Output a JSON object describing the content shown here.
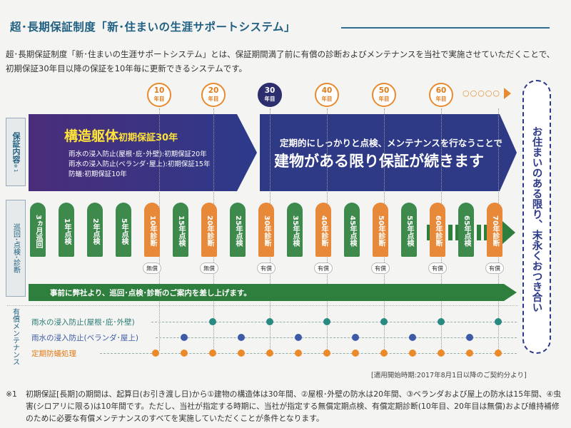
{
  "title": "超･長期保証制度「新･住まいの生涯サポートシステム」",
  "intro": "超･長期保証制度「新･住まいの生涯サポートシステム」とは、保証期間満了前に有償の診断およびメンテナンスを当社で実施させていただくことで、初期保証30年目以降の保証を10年毎に更新できるシステムです。",
  "year_badges": [
    {
      "num": "10",
      "unit": "年目"
    },
    {
      "num": "20",
      "unit": "年目"
    },
    {
      "num": "30",
      "unit": "年目"
    },
    {
      "num": "40",
      "unit": "年目"
    },
    {
      "num": "50",
      "unit": "年目"
    },
    {
      "num": "60",
      "unit": "年目"
    }
  ],
  "badge_dots": "○○○○○",
  "left_tabs": {
    "guarantee": "保証内容",
    "guarantee_note": "※1",
    "inspection": "巡回･点検･診断",
    "maintenance": "有償メンテナンス"
  },
  "structure": {
    "title": "構造躯体",
    "title_suffix": "初期保証30年",
    "lines": [
      "雨水の浸入防止(屋根･庇･外壁):初期保証20年",
      "雨水の浸入防止(ベランダ･屋上):初期保証15年",
      "防蟻:初期保証10年"
    ]
  },
  "continuation": {
    "sub": "定期的にしっかりと点検、メンテナンスを行なうことで",
    "main": "建物がある限り保証が続きます"
  },
  "inspections": [
    {
      "label": "3ヵ月巡回",
      "color": "green",
      "tag": ""
    },
    {
      "label": "1年点検",
      "color": "green",
      "tag": ""
    },
    {
      "label": "2年点検",
      "color": "green",
      "tag": ""
    },
    {
      "label": "5年点検",
      "color": "green",
      "tag": ""
    },
    {
      "label": "10年診断",
      "color": "orange",
      "tag": "無償"
    },
    {
      "label": "15年点検",
      "color": "green",
      "tag": ""
    },
    {
      "label": "20年診断",
      "color": "orange",
      "tag": "無償"
    },
    {
      "label": "25年点検",
      "color": "green",
      "tag": ""
    },
    {
      "label": "30年診断",
      "color": "orange",
      "tag": "有償"
    },
    {
      "label": "35年点検",
      "color": "green",
      "tag": ""
    },
    {
      "label": "40年診断",
      "color": "orange",
      "tag": "有償"
    },
    {
      "label": "45年点検",
      "color": "green",
      "tag": ""
    },
    {
      "label": "50年診断",
      "color": "orange",
      "tag": "有償"
    },
    {
      "label": "55年点検",
      "color": "green",
      "tag": ""
    },
    {
      "label": "60年診断",
      "color": "orange",
      "tag": "有償"
    },
    {
      "label": "65年点検",
      "color": "green",
      "tag": ""
    },
    {
      "label": "70年診断",
      "color": "orange",
      "tag": "有償"
    }
  ],
  "notice": "事前に弊社より、巡回･点検･診断のご案内を差し上げます。",
  "maintenance_rows": [
    {
      "label": "雨水の浸入防止(屋根･庇･外壁)",
      "color": "#2a8a82"
    },
    {
      "label": "雨水の浸入防止(ベランダ･屋上)",
      "color": "#3d5aa8"
    },
    {
      "label": "定期防蟻処理",
      "color": "#ec8a2a"
    }
  ],
  "vertical_slogan": "お住まいのある限り、末永くおつき合い",
  "date_note": "[適用開始時期:2017年8月1日以降のご契約分より]",
  "footnote_mark": "※1",
  "footnote": "初期保証[長期]の期間は、起算日(お引き渡し日)から①建物の構造体は30年間、②屋根･外壁の防水は20年間、③ベランダおよび屋上の防水は15年間、④虫害(シロアリに限る)は10年間です。ただし、当社が指定する時期に、当社が指定する無償定期点検、有償定期診断(10年目、20年目は無償)および維持補修のために必要な有償メンテナンスのすべてを実施していただくことが条件となります。"
}
